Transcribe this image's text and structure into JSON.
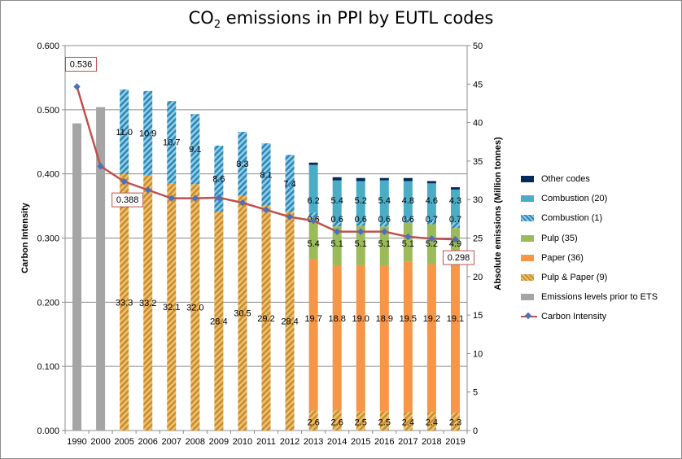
{
  "chart_data": {
    "type": "bar",
    "title_main": "CO",
    "title_sub": "2",
    "title_rest": " emissions in PPI by EUTL codes",
    "ylabel_left": "Carbon Intensity",
    "ylabel_right": "Absolute emissions (Million tonnes)",
    "ylim_left": [
      0,
      0.6
    ],
    "ylim_right": [
      0,
      50
    ],
    "yticks_left": [
      "0.000",
      "0.100",
      "0.200",
      "0.300",
      "0.400",
      "0.500",
      "0.600"
    ],
    "yticks_right": [
      "0",
      "5",
      "10",
      "15",
      "20",
      "25",
      "30",
      "35",
      "40",
      "45",
      "50"
    ],
    "categories": [
      "1990",
      "2000",
      "2005",
      "2006",
      "2007",
      "2008",
      "2009",
      "2010",
      "2011",
      "2012",
      "2013",
      "2014",
      "2015",
      "2016",
      "2017",
      "2018",
      "2019"
    ],
    "series": [
      {
        "name": "Emissions levels prior to ETS",
        "color": "#a5a5a5",
        "pattern": "solid",
        "values": [
          39.9,
          42.0,
          0,
          0,
          0,
          0,
          0,
          0,
          0,
          0,
          0,
          0,
          0,
          0,
          0,
          0,
          0
        ]
      },
      {
        "name": "Pulp & Paper (9)",
        "color": "#d8a24a",
        "pattern": "stripe",
        "values": [
          0,
          0,
          33.3,
          33.2,
          32.1,
          32.0,
          28.4,
          30.5,
          29.2,
          28.4,
          2.6,
          2.6,
          2.5,
          2.5,
          2.4,
          2.4,
          2.3
        ]
      },
      {
        "name": "Paper (36)",
        "color": "#f79646",
        "pattern": "solid",
        "values": [
          0,
          0,
          0,
          0,
          0,
          0,
          0,
          0,
          0,
          0,
          19.7,
          18.8,
          19.0,
          18.9,
          19.5,
          19.2,
          19.1
        ]
      },
      {
        "name": "Pulp (35)",
        "color": "#9bbb59",
        "pattern": "solid",
        "values": [
          0,
          0,
          0,
          0,
          0,
          0,
          0,
          0,
          0,
          0,
          5.4,
          5.1,
          5.1,
          5.1,
          5.1,
          5.2,
          4.9
        ]
      },
      {
        "name": "Combustion (1)",
        "color": "#4bacc6",
        "pattern": "stripe",
        "values": [
          0,
          0,
          11.0,
          10.9,
          10.7,
          9.1,
          8.6,
          8.3,
          8.1,
          7.4,
          0.6,
          0.6,
          0.6,
          0.6,
          0.6,
          0.7,
          0.7
        ]
      },
      {
        "name": "Combustion (20)",
        "color": "#4bacc6",
        "pattern": "solid",
        "values": [
          0,
          0,
          0,
          0,
          0,
          0,
          0,
          0,
          0,
          0,
          6.2,
          5.4,
          5.2,
          5.4,
          4.8,
          4.6,
          4.3
        ]
      },
      {
        "name": "Other codes",
        "color": "#002a5c",
        "pattern": "solid",
        "values": [
          0,
          0,
          0,
          0,
          0,
          0,
          0,
          0,
          0,
          0,
          0.3,
          0.4,
          0.4,
          0.3,
          0.4,
          0.3,
          0.3
        ]
      }
    ],
    "bar_labels": [
      {
        "series": "Pulp & Paper (9)",
        "labels": [
          "",
          "",
          "33.3",
          "33.2",
          "32.1",
          "32.0",
          "28.4",
          "30.5",
          "29.2",
          "28.4",
          "2.6",
          "2.6",
          "2.5",
          "2.5",
          "2.4",
          "2.4",
          "2.3"
        ]
      },
      {
        "series": "Paper (36)",
        "labels": [
          "",
          "",
          "",
          "",
          "",
          "",
          "",
          "",
          "",
          "",
          "19.7",
          "18.8",
          "19.0",
          "18.9",
          "19.5",
          "19.2",
          "19.1"
        ]
      },
      {
        "series": "Pulp (35)",
        "labels": [
          "",
          "",
          "",
          "",
          "",
          "",
          "",
          "",
          "",
          "",
          "5.4",
          "5.1",
          "5.1",
          "5.1",
          "5.1",
          "5.2",
          "4.9"
        ]
      },
      {
        "series": "Combustion (1)",
        "labels": [
          "",
          "",
          "11.0",
          "10.9",
          "10.7",
          "9.1",
          "8.6",
          "8.3",
          "8.1",
          "7.4",
          "0.6",
          "0.6",
          "0.6",
          "0.6",
          "0.6",
          "0.7",
          "0.7"
        ]
      },
      {
        "series": "Combustion (20)",
        "labels": [
          "",
          "",
          "",
          "",
          "",
          "",
          "",
          "",
          "",
          "",
          "6.2",
          "5.4",
          "5.2",
          "5.4",
          "4.8",
          "4.6",
          "4.3"
        ]
      }
    ],
    "line": {
      "name": "Carbon Intensity",
      "color": "#c0504d",
      "marker_color": "#4f6fbb",
      "values": [
        0.536,
        0.412,
        0.388,
        0.375,
        0.362,
        0.362,
        0.363,
        0.355,
        0.344,
        0.333,
        0.327,
        0.31,
        0.31,
        0.31,
        0.302,
        0.299,
        0.298
      ]
    },
    "callouts": [
      {
        "index": 0,
        "text": "0.536"
      },
      {
        "index": 2,
        "text": "0.388"
      },
      {
        "index": 16,
        "text": "0.298"
      }
    ]
  },
  "legend": [
    {
      "label": "Other codes",
      "color": "#002a5c",
      "pattern": "solid"
    },
    {
      "label": "Combustion (20)",
      "color": "#4bacc6",
      "pattern": "solid"
    },
    {
      "label": "Combustion (1)",
      "color": "#4bacc6",
      "pattern": "stripe"
    },
    {
      "label": "Pulp (35)",
      "color": "#9bbb59",
      "pattern": "solid"
    },
    {
      "label": "Paper (36)",
      "color": "#f79646",
      "pattern": "solid"
    },
    {
      "label": "Pulp & Paper (9)",
      "color": "#d8a24a",
      "pattern": "stripe"
    },
    {
      "label": "Emissions levels prior to ETS",
      "color": "#a5a5a5",
      "pattern": "solid"
    },
    {
      "label": "Carbon Intensity",
      "type": "line"
    }
  ]
}
